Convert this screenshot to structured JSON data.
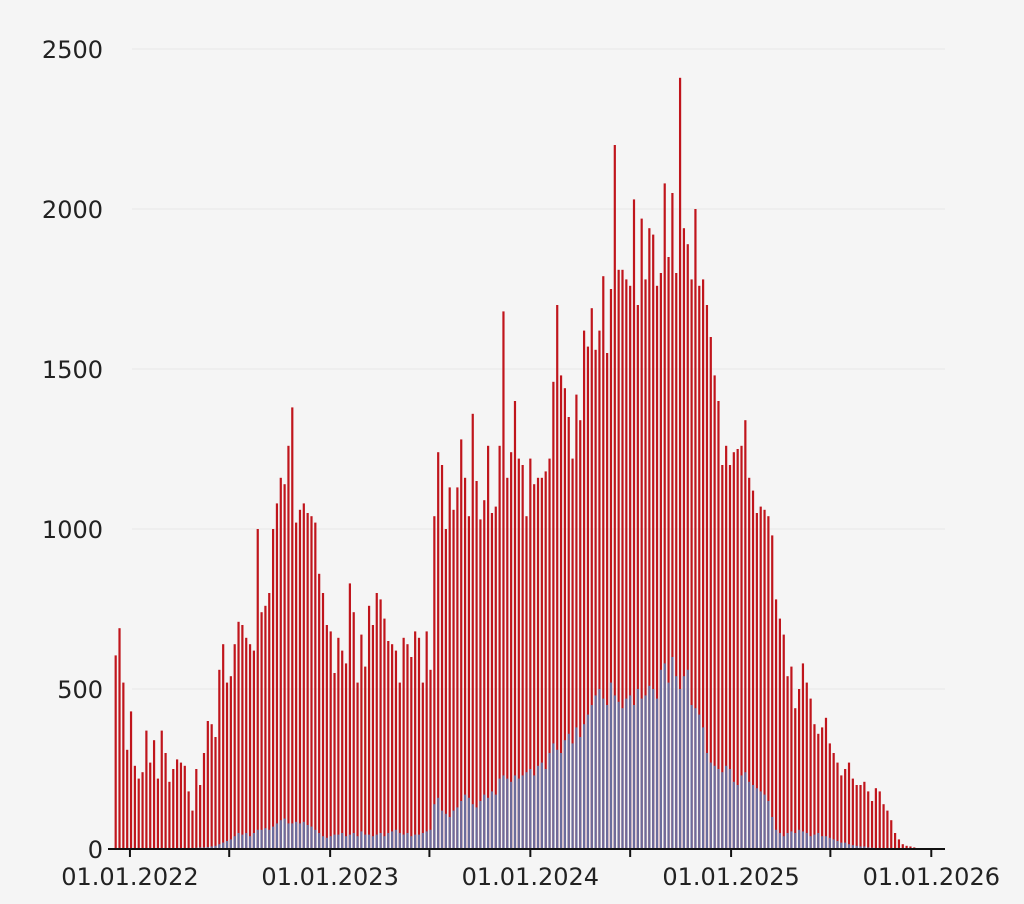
{
  "chart_data": {
    "type": "bar",
    "title": "",
    "xlabel": "",
    "ylabel": "",
    "ylim": [
      0,
      2500
    ],
    "xlim": [
      "2021-11-22",
      "2026-01-26"
    ],
    "grid": "horizontal",
    "y_ticks": [
      {
        "value": 0,
        "label": "0"
      },
      {
        "value": 500,
        "label": "500"
      },
      {
        "value": 1000,
        "label": "1000"
      },
      {
        "value": 1500,
        "label": "1500"
      },
      {
        "value": 2000,
        "label": "2000"
      },
      {
        "value": 2500,
        "label": "2500"
      }
    ],
    "x_ticks": [
      {
        "date": "2022-01-01",
        "label": "01.01.2022"
      },
      {
        "date": "2022-07-01",
        "label": ""
      },
      {
        "date": "2023-01-01",
        "label": "01.01.2023"
      },
      {
        "date": "2023-07-01",
        "label": ""
      },
      {
        "date": "2024-01-01",
        "label": "01.01.2024"
      },
      {
        "date": "2024-07-01",
        "label": ""
      },
      {
        "date": "2025-01-01",
        "label": "01.01.2025"
      },
      {
        "date": "2025-07-01",
        "label": ""
      },
      {
        "date": "2026-01-01",
        "label": "01.01.2026"
      }
    ],
    "bar_interval": "weekly",
    "series": [
      {
        "color": "#c0151c",
        "x_start": "2021-12-06",
        "values": [
          605,
          690,
          520,
          310,
          430,
          260,
          220,
          240,
          370,
          270,
          340,
          220,
          370,
          300,
          210,
          250,
          280,
          270,
          260,
          180,
          120,
          250,
          200,
          300,
          400,
          390,
          350,
          560,
          640,
          520,
          540,
          640,
          710,
          700,
          660,
          640,
          620,
          1000,
          740,
          760,
          800,
          1000,
          1080,
          1160,
          1140,
          1260,
          1380,
          1020,
          1060,
          1080,
          1050,
          1040,
          1020,
          860,
          800,
          700,
          680,
          550,
          660,
          620,
          580,
          830,
          740,
          520,
          670,
          570,
          760,
          700,
          800,
          780,
          720,
          650,
          640,
          620,
          520,
          660,
          640,
          600,
          680,
          660,
          520,
          680,
          560,
          1040,
          1240,
          1200,
          1000,
          1130,
          1060,
          1130,
          1280,
          1160,
          1040,
          1360,
          1150,
          1030,
          1090,
          1260,
          1050,
          1070,
          1260,
          1680,
          1160,
          1240,
          1400,
          1220,
          1200,
          1040,
          1220,
          1140,
          1160,
          1160,
          1180,
          1220,
          1460,
          1700,
          1480,
          1440,
          1350,
          1220,
          1420,
          1340,
          1620,
          1570,
          1690,
          1560,
          1620,
          1790,
          1550,
          1750,
          2200,
          1810,
          1810,
          1780,
          1760,
          2030,
          1700,
          1970,
          1780,
          1940,
          1920,
          1760,
          1800,
          2080,
          1850,
          2050,
          1800,
          2410,
          1940,
          1890,
          1780,
          2000,
          1760,
          1780,
          1700,
          1600,
          1480,
          1400,
          1200,
          1260,
          1200,
          1240,
          1250,
          1260,
          1340,
          1160,
          1120,
          1050,
          1070,
          1060,
          1040,
          980,
          780,
          720,
          670,
          540,
          570,
          440,
          500,
          580,
          520,
          470,
          390,
          360,
          380,
          410,
          330,
          300,
          270,
          230,
          250,
          270,
          220,
          200,
          200,
          210,
          180,
          150,
          190,
          180,
          140,
          120,
          90,
          50,
          30,
          15,
          10,
          8,
          5
        ]
      },
      {
        "color": "#6b6c9d",
        "x_start": "2021-12-06",
        "values": [
          2,
          2,
          2,
          2,
          2,
          2,
          2,
          2,
          2,
          2,
          2,
          2,
          2,
          2,
          2,
          2,
          2,
          2,
          2,
          2,
          2,
          4,
          5,
          5,
          6,
          8,
          10,
          15,
          20,
          25,
          30,
          40,
          50,
          45,
          50,
          40,
          50,
          60,
          60,
          65,
          60,
          70,
          80,
          90,
          95,
          80,
          80,
          85,
          80,
          85,
          75,
          70,
          60,
          50,
          40,
          35,
          40,
          45,
          45,
          50,
          40,
          45,
          50,
          40,
          55,
          45,
          45,
          40,
          45,
          50,
          40,
          50,
          55,
          60,
          50,
          45,
          50,
          40,
          45,
          45,
          50,
          55,
          60,
          140,
          160,
          120,
          110,
          100,
          120,
          130,
          150,
          170,
          160,
          140,
          130,
          150,
          170,
          160,
          180,
          170,
          220,
          230,
          220,
          210,
          230,
          220,
          230,
          240,
          250,
          230,
          260,
          270,
          250,
          300,
          330,
          310,
          300,
          340,
          360,
          330,
          380,
          350,
          390,
          420,
          450,
          480,
          500,
          470,
          450,
          520,
          480,
          460,
          440,
          470,
          480,
          450,
          500,
          470,
          480,
          510,
          500,
          470,
          560,
          580,
          520,
          600,
          540,
          500,
          540,
          560,
          450,
          440,
          420,
          380,
          300,
          270,
          260,
          250,
          240,
          260,
          250,
          210,
          200,
          230,
          240,
          210,
          200,
          190,
          180,
          170,
          150,
          100,
          60,
          50,
          40,
          50,
          55,
          50,
          60,
          55,
          50,
          40,
          45,
          50,
          40,
          40,
          35,
          30,
          25,
          20,
          20,
          15,
          12,
          10,
          8,
          8,
          5,
          4,
          3,
          2,
          2,
          2,
          2,
          2,
          2,
          2,
          2,
          2
        ]
      }
    ]
  }
}
